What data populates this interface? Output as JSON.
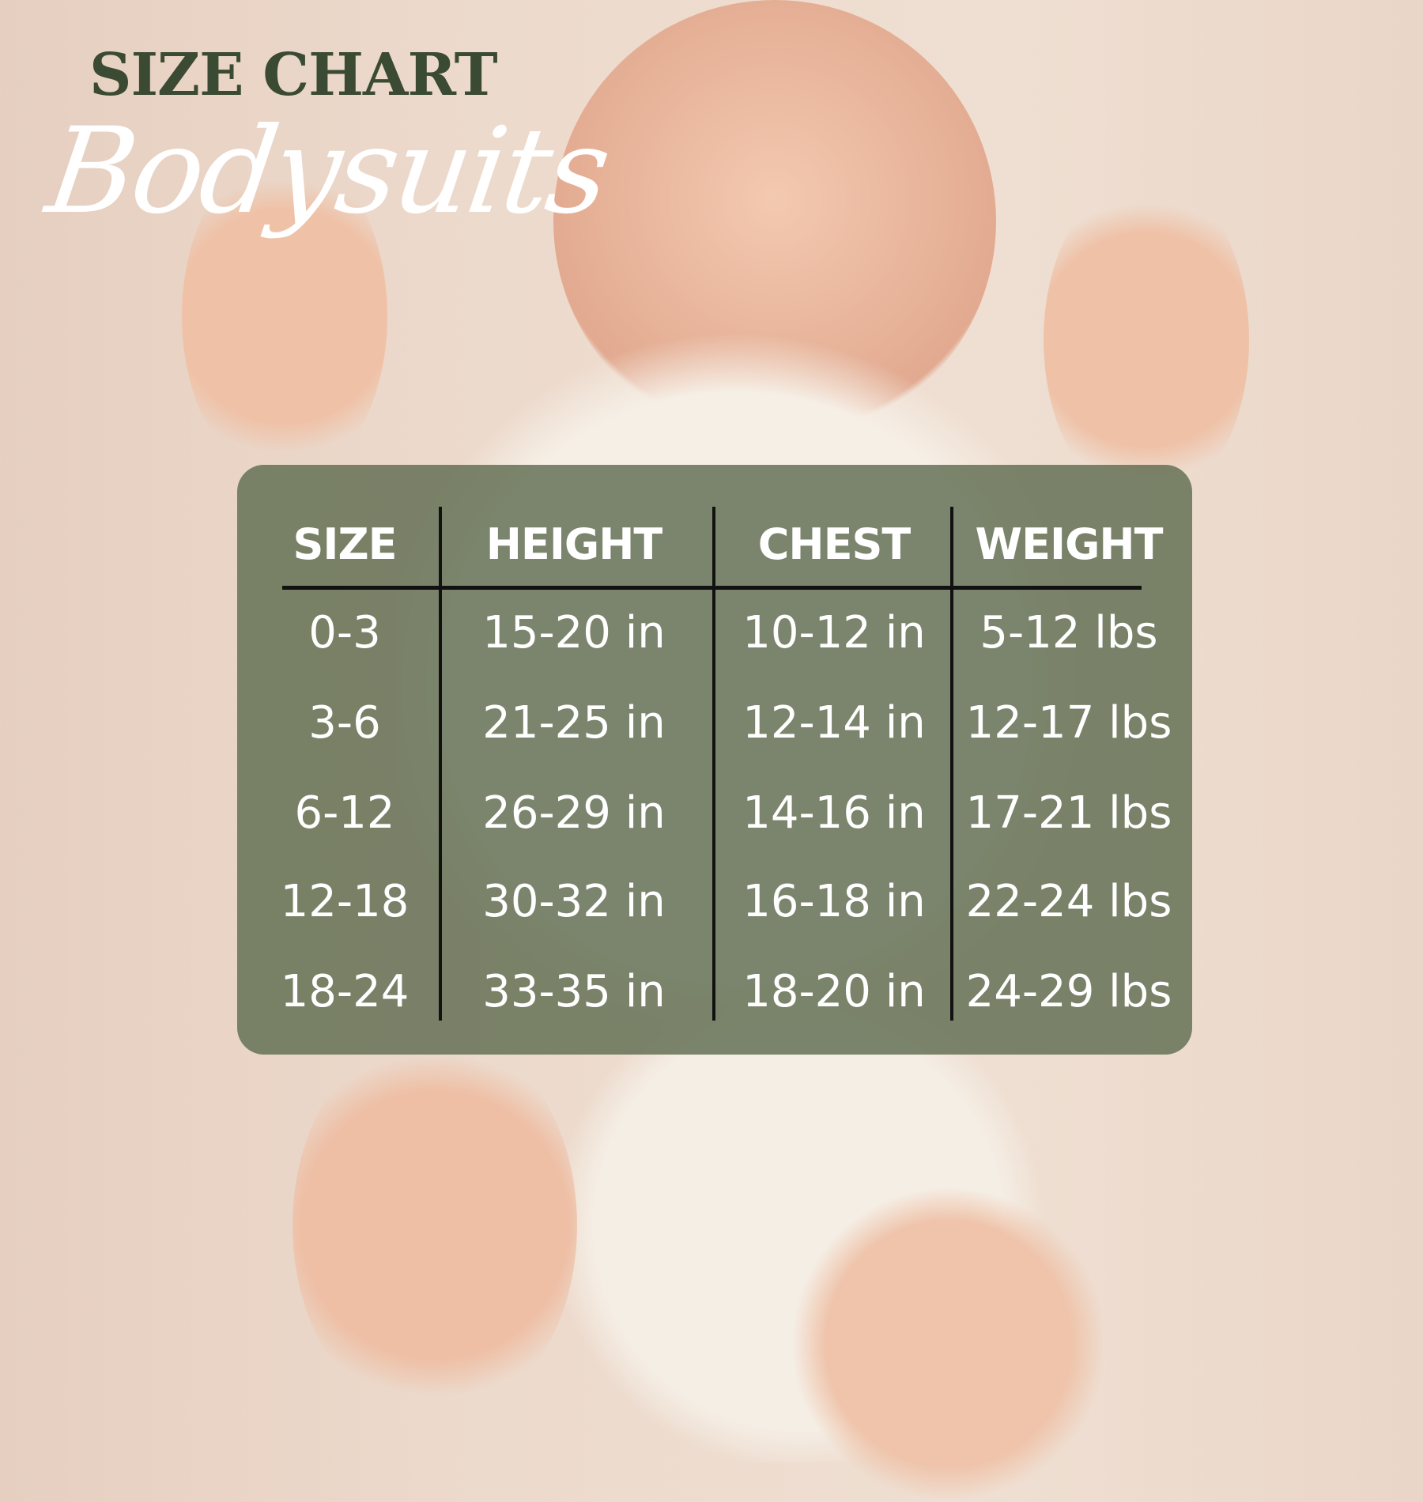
{
  "title": "SIZE CHART",
  "subtitle": "Bodysuits",
  "chart_data": {
    "type": "table",
    "columns": [
      "SIZE",
      "HEIGHT",
      "CHEST",
      "WEIGHT"
    ],
    "rows": [
      [
        "0-3",
        "15-20 in",
        "10-12 in",
        "5-12 lbs"
      ],
      [
        "3-6",
        "21-25 in",
        "12-14 in",
        "12-17 lbs"
      ],
      [
        "6-12",
        "26-29 in",
        "14-16 in",
        "17-21 lbs"
      ],
      [
        "12-18",
        "30-32 in",
        "16-18 in",
        "22-24 lbs"
      ],
      [
        "18-24",
        "33-35 in",
        "18-20 in",
        "24-29 lbs"
      ]
    ]
  },
  "colors": {
    "title": "#3b4a33",
    "panel": "#5f6c50",
    "text": "#ffffff"
  }
}
